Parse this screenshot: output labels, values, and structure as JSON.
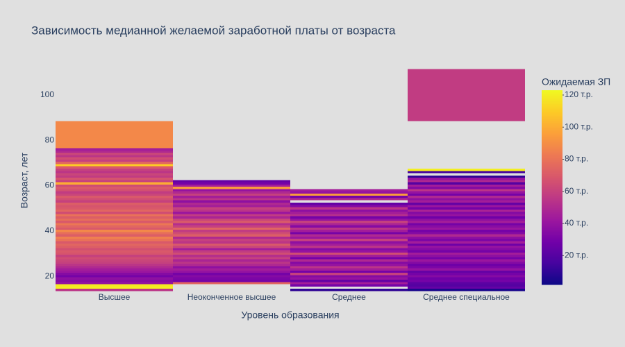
{
  "chart_data": {
    "type": "heatmap",
    "title": "Зависимость медианной желаемой заработной платы от возраста",
    "x_label": "Уровень образования",
    "y_label": "Возраст, лет",
    "colorbar_title": "Ожидаемая ЗП",
    "categories": [
      "Высшее",
      "Неоконченное высшее",
      "Среднее",
      "Среднее специальное"
    ],
    "y": [
      14,
      15,
      16,
      17,
      18,
      19,
      20,
      21,
      22,
      23,
      24,
      25,
      26,
      27,
      28,
      29,
      30,
      31,
      32,
      33,
      34,
      35,
      36,
      37,
      38,
      39,
      40,
      41,
      42,
      43,
      44,
      45,
      46,
      47,
      48,
      49,
      50,
      51,
      52,
      53,
      54,
      55,
      56,
      57,
      58,
      59,
      60,
      61,
      62,
      63,
      64,
      65,
      66,
      67,
      68,
      69,
      70,
      71,
      72,
      73,
      74,
      75,
      76,
      77,
      100
    ],
    "z": [
      [
        55,
        120,
        118,
        40,
        35,
        38,
        30,
        35,
        42,
        45,
        50,
        55,
        60,
        62,
        65,
        60,
        68,
        70,
        66,
        72,
        75,
        70,
        80,
        85,
        72,
        78,
        88,
        70,
        75,
        82,
        70,
        78,
        72,
        80,
        65,
        75,
        70,
        68,
        72,
        60,
        65,
        70,
        62,
        58,
        66,
        70,
        64,
        100,
        60,
        68,
        58,
        62,
        55,
        60,
        70,
        110,
        75,
        60,
        65,
        55,
        62,
        50,
        45,
        88,
        null
      ],
      [
        null,
        null,
        null,
        75,
        30,
        32,
        35,
        30,
        40,
        45,
        38,
        50,
        55,
        48,
        60,
        52,
        65,
        58,
        45,
        62,
        70,
        55,
        60,
        50,
        72,
        65,
        58,
        75,
        60,
        52,
        70,
        62,
        48,
        58,
        42,
        55,
        60,
        45,
        50,
        38,
        55,
        45,
        60,
        50,
        40,
        95,
        45,
        30,
        25,
        null,
        null,
        null,
        null,
        null,
        null,
        null,
        null,
        null,
        null,
        null,
        null,
        null,
        null,
        null,
        null
      ],
      [
        10,
        null,
        30,
        45,
        25,
        40,
        35,
        60,
        30,
        45,
        55,
        40,
        35,
        50,
        30,
        45,
        65,
        40,
        35,
        55,
        45,
        38,
        60,
        42,
        50,
        30,
        45,
        55,
        35,
        48,
        60,
        40,
        30,
        52,
        45,
        38,
        55,
        35,
        25,
        null,
        50,
        30,
        95,
        40,
        45,
        null,
        null,
        null,
        null,
        null,
        null,
        null,
        null,
        null,
        null,
        null,
        null,
        null,
        null,
        null,
        null,
        null,
        null,
        null,
        null
      ],
      [
        5,
        25,
        20,
        22,
        30,
        28,
        35,
        30,
        25,
        40,
        32,
        28,
        35,
        42,
        30,
        38,
        45,
        30,
        35,
        40,
        28,
        45,
        32,
        38,
        50,
        35,
        30,
        42,
        36,
        30,
        45,
        38,
        28,
        40,
        35,
        48,
        30,
        42,
        25,
        45,
        38,
        50,
        30,
        40,
        55,
        35,
        45,
        20,
        50,
        40,
        10,
        null,
        15,
        120,
        null,
        null,
        null,
        null,
        null,
        null,
        null,
        null,
        null,
        null,
        58
      ]
    ],
    "ylim": [
      13.6,
      111.3
    ],
    "yticks": [
      20,
      40,
      60,
      80,
      100
    ],
    "zlim": [
      2,
      123
    ],
    "zticks": [
      {
        "value": 20,
        "label": "20 т.р."
      },
      {
        "value": 40,
        "label": "40 т.р."
      },
      {
        "value": 60,
        "label": "60 т.р."
      },
      {
        "value": 80,
        "label": "80 т.р."
      },
      {
        "value": 100,
        "label": "100 т.р."
      },
      {
        "value": 120,
        "label": "120 т.р."
      }
    ],
    "colorscale": [
      "#0d0887",
      "#46039f",
      "#7201a8",
      "#9c179e",
      "#bd3786",
      "#d8576b",
      "#ed7953",
      "#fb9f3a",
      "#fdca26",
      "#f0f921"
    ]
  }
}
